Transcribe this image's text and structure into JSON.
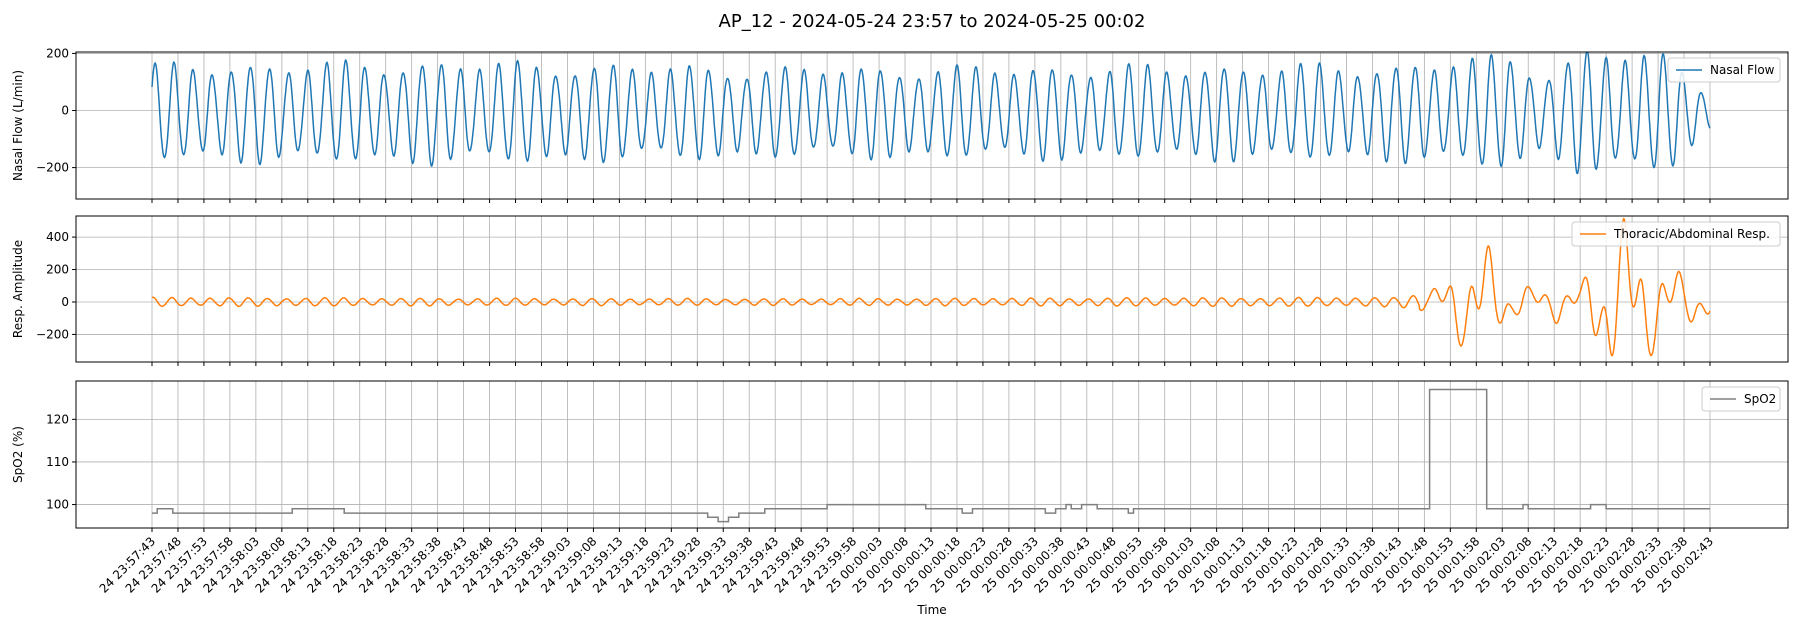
{
  "title": "AP_12 - 2024-05-24 23:57 to 2024-05-25 00:02",
  "colors": {
    "nasal": "#1f77b4",
    "resp": "#ff7f0e",
    "spo2": "#808080",
    "grid": "#b0b0b0"
  },
  "chart_data": [
    {
      "type": "line",
      "ylabel": "Nasal Flow (L/min)",
      "xlabel": "",
      "ylim": [
        -310,
        205
      ],
      "yticks": [
        -200,
        0,
        200
      ],
      "grid": true,
      "legend": "top-right",
      "series": [
        {
          "name": "Nasal Flow",
          "breaths_per_10s": 2.72,
          "x_range_s": [
            0,
            300
          ],
          "amplitude_points": [
            [
              0,
              150
            ],
            [
              60,
              160
            ],
            [
              120,
              140
            ],
            [
              180,
              145
            ],
            [
              240,
              150
            ],
            [
              262,
              180
            ],
            [
              268,
              120
            ],
            [
              276,
              200
            ],
            [
              292,
              180
            ],
            [
              300,
              60
            ]
          ]
        }
      ]
    },
    {
      "type": "line",
      "ylabel": "Resp. Amplitude",
      "xlabel": "",
      "ylim": [
        -370,
        530
      ],
      "yticks": [
        -200,
        0,
        200,
        400
      ],
      "grid": true,
      "legend": "top-right",
      "series": [
        {
          "name": "Thoracic/Abdominal Resp.",
          "breaths_per_10s": 2.72,
          "x_range_s": [
            0,
            300
          ],
          "amplitude_points": [
            [
              0,
              25
            ],
            [
              60,
              20
            ],
            [
              120,
              18
            ],
            [
              180,
              22
            ],
            [
              240,
              25
            ],
            [
              246,
              60
            ],
            [
              250,
              180
            ],
            [
              256,
              280
            ],
            [
              262,
              100
            ],
            [
              275,
              80
            ],
            [
              282,
              480
            ],
            [
              290,
              200
            ],
            [
              300,
              100
            ]
          ]
        }
      ]
    },
    {
      "type": "line",
      "ylabel": "SpO2 (%)",
      "xlabel": "Time",
      "ylim": [
        94.5,
        129
      ],
      "yticks": [
        100,
        110,
        120
      ],
      "grid": true,
      "legend": "top-right",
      "series": [
        {
          "name": "SpO2",
          "step_points": [
            [
              0,
              98
            ],
            [
              1,
              99
            ],
            [
              4,
              98
            ],
            [
              27,
              99
            ],
            [
              37,
              98
            ],
            [
              107,
              97
            ],
            [
              109,
              96
            ],
            [
              111,
              97
            ],
            [
              113,
              98
            ],
            [
              118,
              99
            ],
            [
              130,
              100
            ],
            [
              149,
              99
            ],
            [
              156,
              98
            ],
            [
              158,
              99
            ],
            [
              172,
              98
            ],
            [
              174,
              99
            ],
            [
              176,
              100
            ],
            [
              177,
              99
            ],
            [
              179,
              100
            ],
            [
              180,
              100
            ],
            [
              182,
              99
            ],
            [
              188,
              98
            ],
            [
              189,
              99
            ],
            [
              246,
              127
            ],
            [
              257,
              99
            ],
            [
              264,
              100
            ],
            [
              265,
              99
            ],
            [
              277,
              100
            ],
            [
              280,
              99
            ],
            [
              300,
              99
            ]
          ]
        }
      ]
    }
  ],
  "x_axis": {
    "label": "Time",
    "range_s": [
      0,
      300
    ],
    "tick_labels": [
      "24 23:57:43",
      "24 23:57:48",
      "24 23:57:53",
      "24 23:57:58",
      "24 23:58:03",
      "24 23:58:08",
      "24 23:58:13",
      "24 23:58:18",
      "24 23:58:23",
      "24 23:58:28",
      "24 23:58:33",
      "24 23:58:38",
      "24 23:58:43",
      "24 23:58:48",
      "24 23:58:53",
      "24 23:58:58",
      "24 23:59:03",
      "24 23:59:08",
      "24 23:59:13",
      "24 23:59:18",
      "24 23:59:23",
      "24 23:59:28",
      "24 23:59:33",
      "24 23:59:38",
      "24 23:59:43",
      "24 23:59:48",
      "24 23:59:53",
      "24 23:59:58",
      "25 00:00:03",
      "25 00:00:08",
      "25 00:00:13",
      "25 00:00:18",
      "25 00:00:23",
      "25 00:00:28",
      "25 00:00:33",
      "25 00:00:38",
      "25 00:00:43",
      "25 00:00:48",
      "25 00:00:53",
      "25 00:00:58",
      "25 00:01:03",
      "25 00:01:08",
      "25 00:01:13",
      "25 00:01:18",
      "25 00:01:23",
      "25 00:01:28",
      "25 00:01:33",
      "25 00:01:38",
      "25 00:01:43",
      "25 00:01:48",
      "25 00:01:53",
      "25 00:01:58",
      "25 00:02:03",
      "25 00:02:08",
      "25 00:02:13",
      "25 00:02:18",
      "25 00:02:23",
      "25 00:02:28",
      "25 00:02:33",
      "25 00:02:38",
      "25 00:02:43"
    ]
  }
}
